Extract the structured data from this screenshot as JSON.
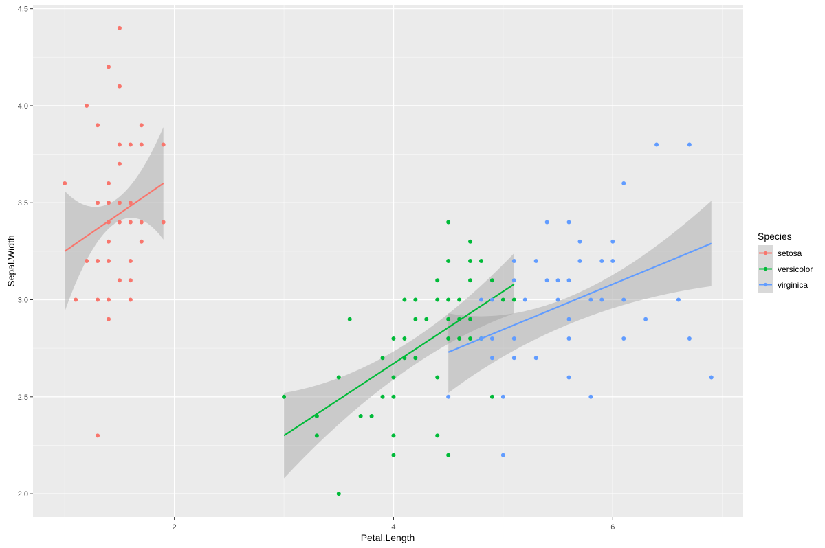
{
  "chart_data": {
    "type": "scatter",
    "xlabel": "Petal.Length",
    "ylabel": "Sepal.Width",
    "xlim": [
      0.71,
      7.19
    ],
    "ylim": [
      1.88,
      4.52
    ],
    "x_ticks": [
      2,
      4,
      6
    ],
    "y_ticks": [
      2.0,
      2.5,
      3.0,
      3.5,
      4.0,
      4.5
    ],
    "x_tick_labels": [
      "2",
      "4",
      "6"
    ],
    "y_tick_labels": [
      "2.0",
      "2.5",
      "3.0",
      "3.5",
      "4.0",
      "4.5"
    ],
    "grid": true,
    "legend": {
      "title": "Species",
      "position": "right"
    },
    "series": [
      {
        "name": "setosa",
        "color": "#F8766D",
        "points": [
          [
            1.0,
            3.6
          ],
          [
            1.1,
            3.0
          ],
          [
            1.2,
            4.0
          ],
          [
            1.2,
            3.2
          ],
          [
            1.3,
            3.9
          ],
          [
            1.3,
            3.5
          ],
          [
            1.3,
            3.2
          ],
          [
            1.3,
            3.0
          ],
          [
            1.3,
            2.3
          ],
          [
            1.4,
            4.2
          ],
          [
            1.4,
            3.6
          ],
          [
            1.4,
            3.5
          ],
          [
            1.4,
            3.4
          ],
          [
            1.4,
            3.3
          ],
          [
            1.4,
            3.2
          ],
          [
            1.4,
            3.0
          ],
          [
            1.4,
            2.9
          ],
          [
            1.5,
            4.4
          ],
          [
            1.5,
            4.1
          ],
          [
            1.5,
            3.8
          ],
          [
            1.5,
            3.7
          ],
          [
            1.5,
            3.5
          ],
          [
            1.5,
            3.4
          ],
          [
            1.5,
            3.1
          ],
          [
            1.6,
            3.8
          ],
          [
            1.6,
            3.5
          ],
          [
            1.6,
            3.4
          ],
          [
            1.6,
            3.2
          ],
          [
            1.6,
            3.1
          ],
          [
            1.6,
            3.0
          ],
          [
            1.7,
            3.9
          ],
          [
            1.7,
            3.8
          ],
          [
            1.7,
            3.4
          ],
          [
            1.7,
            3.3
          ],
          [
            1.9,
            3.8
          ],
          [
            1.9,
            3.4
          ]
        ],
        "fit": {
          "x": [
            1.0,
            1.9
          ],
          "y": [
            3.25,
            3.6
          ]
        },
        "band": {
          "x": [
            1.0,
            1.45,
            1.9
          ],
          "lower": [
            2.94,
            3.39,
            3.31
          ],
          "upper": [
            3.56,
            3.51,
            3.89
          ]
        }
      },
      {
        "name": "versicolor",
        "color": "#00BA38",
        "points": [
          [
            3.0,
            2.5
          ],
          [
            3.3,
            2.4
          ],
          [
            3.3,
            2.3
          ],
          [
            3.5,
            2.6
          ],
          [
            3.5,
            2.0
          ],
          [
            3.6,
            2.9
          ],
          [
            3.7,
            2.4
          ],
          [
            3.8,
            2.4
          ],
          [
            3.9,
            2.7
          ],
          [
            3.9,
            2.5
          ],
          [
            4.0,
            2.8
          ],
          [
            4.0,
            2.6
          ],
          [
            4.0,
            2.5
          ],
          [
            4.0,
            2.3
          ],
          [
            4.0,
            2.2
          ],
          [
            4.1,
            3.0
          ],
          [
            4.1,
            2.8
          ],
          [
            4.1,
            2.7
          ],
          [
            4.2,
            3.0
          ],
          [
            4.2,
            2.9
          ],
          [
            4.2,
            2.7
          ],
          [
            4.3,
            2.9
          ],
          [
            4.4,
            3.1
          ],
          [
            4.4,
            3.0
          ],
          [
            4.4,
            2.6
          ],
          [
            4.4,
            2.3
          ],
          [
            4.5,
            3.4
          ],
          [
            4.5,
            3.2
          ],
          [
            4.5,
            3.0
          ],
          [
            4.5,
            2.9
          ],
          [
            4.5,
            2.8
          ],
          [
            4.5,
            2.2
          ],
          [
            4.6,
            3.0
          ],
          [
            4.6,
            2.9
          ],
          [
            4.6,
            2.8
          ],
          [
            4.7,
            3.3
          ],
          [
            4.7,
            3.2
          ],
          [
            4.7,
            3.1
          ],
          [
            4.7,
            2.9
          ],
          [
            4.7,
            2.8
          ],
          [
            4.8,
            3.2
          ],
          [
            4.8,
            2.8
          ],
          [
            4.9,
            3.1
          ],
          [
            4.9,
            2.5
          ],
          [
            5.0,
            3.0
          ],
          [
            5.1,
            3.0
          ]
        ],
        "fit": {
          "x": [
            3.0,
            5.1
          ],
          "y": [
            2.3,
            3.08
          ]
        },
        "band": {
          "x": [
            3.0,
            4.05,
            5.1
          ],
          "lower": [
            2.08,
            2.61,
            2.93
          ],
          "upper": [
            2.52,
            2.75,
            3.24
          ]
        }
      },
      {
        "name": "virginica",
        "color": "#619CFF",
        "points": [
          [
            4.5,
            2.5
          ],
          [
            4.8,
            3.0
          ],
          [
            4.8,
            2.8
          ],
          [
            4.9,
            3.0
          ],
          [
            4.9,
            2.8
          ],
          [
            4.9,
            2.7
          ],
          [
            5.0,
            2.5
          ],
          [
            5.0,
            2.2
          ],
          [
            5.1,
            3.2
          ],
          [
            5.1,
            3.1
          ],
          [
            5.1,
            2.8
          ],
          [
            5.1,
            2.7
          ],
          [
            5.2,
            3.0
          ],
          [
            5.3,
            3.2
          ],
          [
            5.3,
            2.7
          ],
          [
            5.4,
            3.4
          ],
          [
            5.4,
            3.1
          ],
          [
            5.5,
            3.1
          ],
          [
            5.5,
            3.0
          ],
          [
            5.6,
            3.4
          ],
          [
            5.6,
            3.1
          ],
          [
            5.6,
            2.9
          ],
          [
            5.6,
            2.8
          ],
          [
            5.6,
            2.6
          ],
          [
            5.7,
            3.3
          ],
          [
            5.7,
            3.2
          ],
          [
            5.8,
            3.0
          ],
          [
            5.8,
            2.5
          ],
          [
            5.9,
            3.2
          ],
          [
            5.9,
            3.0
          ],
          [
            6.0,
            3.3
          ],
          [
            6.0,
            3.2
          ],
          [
            6.1,
            3.6
          ],
          [
            6.1,
            3.0
          ],
          [
            6.1,
            2.8
          ],
          [
            6.3,
            2.9
          ],
          [
            6.4,
            3.8
          ],
          [
            6.6,
            3.0
          ],
          [
            6.7,
            3.8
          ],
          [
            6.7,
            2.8
          ],
          [
            6.9,
            2.6
          ]
        ],
        "fit": {
          "x": [
            4.5,
            6.9
          ],
          "y": [
            2.73,
            3.29
          ]
        },
        "band": {
          "x": [
            4.5,
            5.55,
            6.9
          ],
          "lower": [
            2.52,
            2.88,
            3.07
          ],
          "upper": [
            2.93,
            3.02,
            3.51
          ]
        }
      }
    ]
  }
}
